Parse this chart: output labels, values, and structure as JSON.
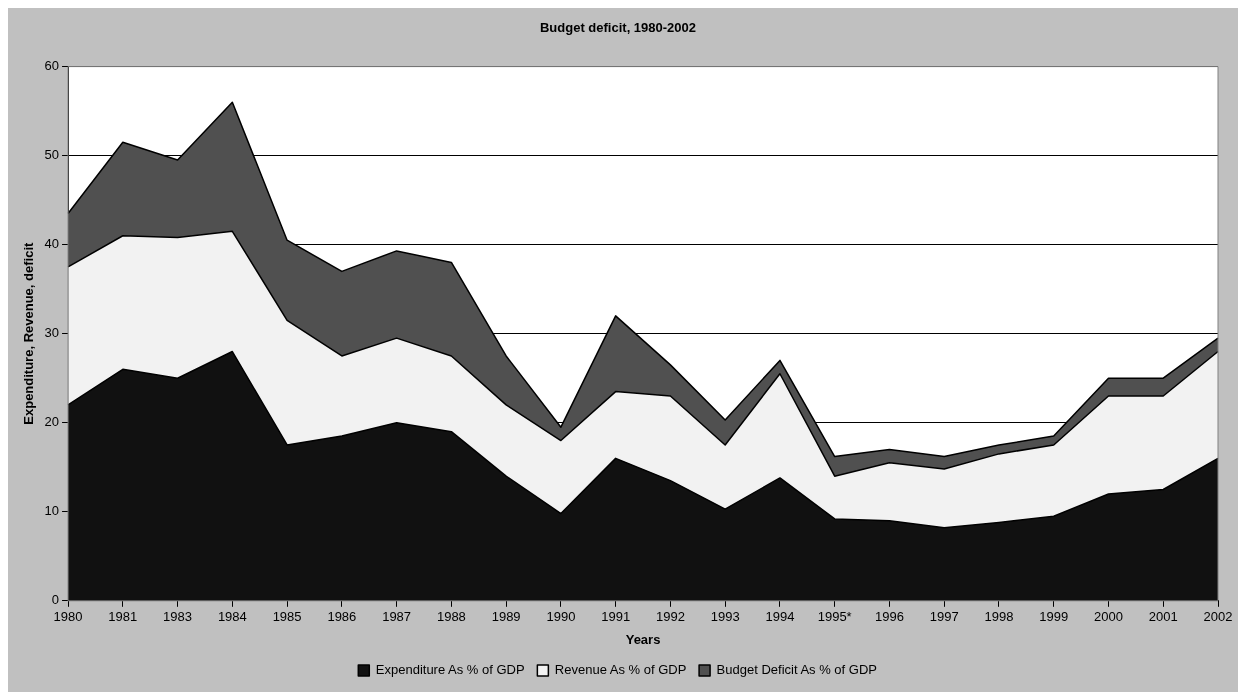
{
  "chart_data": {
    "type": "area",
    "title": "Budget deficit, 1980-2002",
    "xlabel": "Years",
    "ylabel": "Expenditure, Revenue, deficit",
    "categories": [
      "1980",
      "1981",
      "1983",
      "1984",
      "1985",
      "1986",
      "1987",
      "1988",
      "1989",
      "1990",
      "1991",
      "1992",
      "1993",
      "1994",
      "1995*",
      "1996",
      "1997",
      "1998",
      "1999",
      "2000",
      "2001",
      "2002"
    ],
    "stacked": true,
    "ylim": [
      0,
      60
    ],
    "yticks": [
      0,
      10,
      20,
      30,
      40,
      50,
      60
    ],
    "grid": "y",
    "legend": "bottom",
    "series": [
      {
        "name": "Expenditure As % of GDP",
        "color": "#111111",
        "values": [
          22,
          26,
          25,
          28,
          17.5,
          18.5,
          20,
          19,
          14,
          9.8,
          16,
          13.5,
          10.3,
          13.8,
          9.2,
          9,
          8.2,
          8.8,
          9.5,
          12,
          12.5,
          16
        ]
      },
      {
        "name": "Revenue As % of GDP",
        "color": "#f2f2f2",
        "values": [
          15.5,
          15,
          15.8,
          13.5,
          14,
          9,
          9.5,
          8.5,
          8,
          8.2,
          7.5,
          9.5,
          7.2,
          11.7,
          4.8,
          6.5,
          6.6,
          7.7,
          8,
          11,
          10.5,
          12
        ]
      },
      {
        "name": "Budget Deficit As % of GDP",
        "color": "#505050",
        "values": [
          6,
          10.5,
          8.7,
          14.5,
          9,
          9.5,
          9.8,
          10.5,
          5.5,
          1.5,
          8.5,
          3.5,
          2.8,
          1.5,
          2.2,
          1.5,
          1.4,
          1,
          1,
          2,
          2,
          1.5
        ]
      }
    ]
  }
}
